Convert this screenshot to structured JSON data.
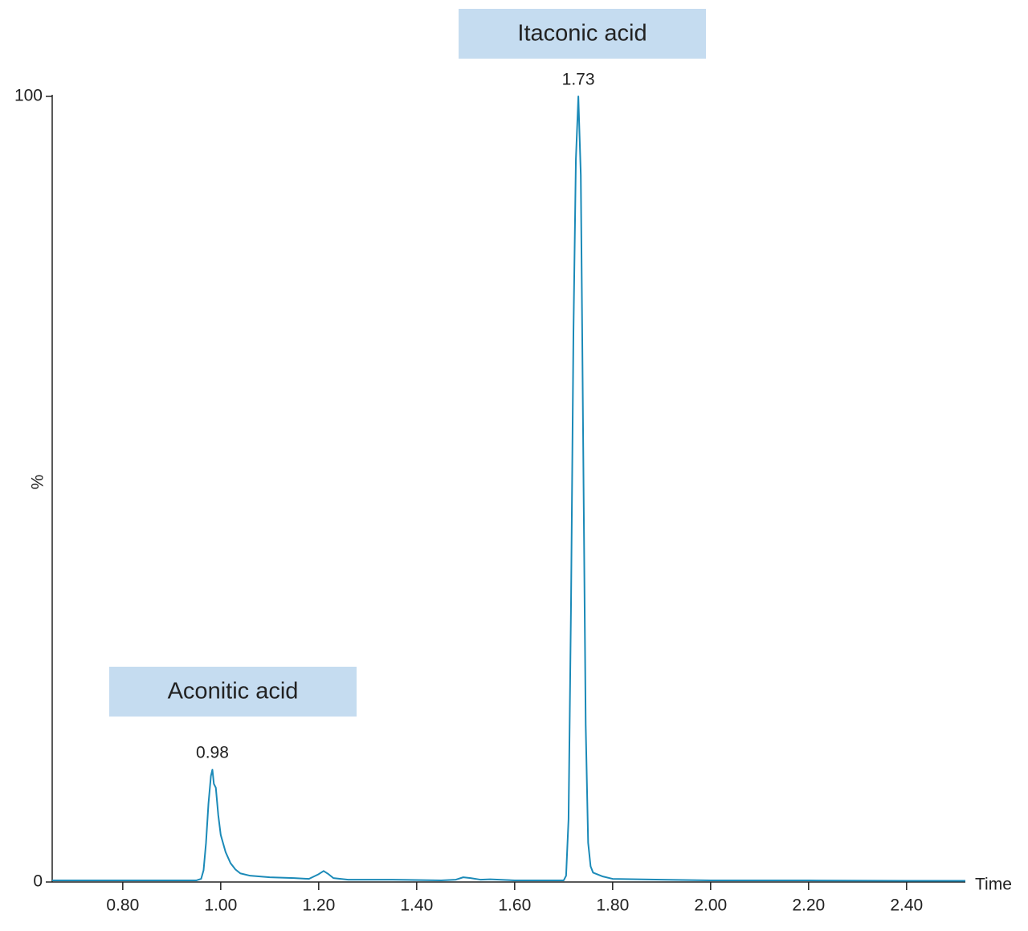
{
  "chart_data": {
    "type": "line",
    "y_label": "%",
    "x_label": "Time",
    "x": [
      0.656,
      0.7,
      0.8,
      0.9,
      0.95,
      0.96,
      0.965,
      0.97,
      0.975,
      0.98,
      0.983,
      0.986,
      0.99,
      0.995,
      1.0,
      1.01,
      1.02,
      1.03,
      1.04,
      1.06,
      1.1,
      1.15,
      1.18,
      1.2,
      1.21,
      1.22,
      1.23,
      1.26,
      1.35,
      1.45,
      1.48,
      1.495,
      1.51,
      1.53,
      1.55,
      1.6,
      1.7,
      1.705,
      1.71,
      1.715,
      1.72,
      1.725,
      1.73,
      1.735,
      1.74,
      1.745,
      1.75,
      1.755,
      1.76,
      1.78,
      1.8,
      1.9,
      2.0,
      2.2,
      2.4,
      2.52
    ],
    "series": [
      {
        "color": "#1b8ab8",
        "values": [
          0.2,
          0.2,
          0.2,
          0.2,
          0.2,
          0.4,
          1.5,
          5,
          10,
          13.5,
          14.3,
          12.5,
          12.0,
          8.5,
          6,
          3.8,
          2.4,
          1.6,
          1.1,
          0.8,
          0.6,
          0.5,
          0.4,
          1.0,
          1.4,
          1.0,
          0.5,
          0.3,
          0.3,
          0.2,
          0.3,
          0.6,
          0.5,
          0.3,
          0.35,
          0.2,
          0.2,
          0.8,
          8,
          35,
          70,
          92,
          100,
          90,
          55,
          20,
          5,
          2.0,
          1.2,
          0.7,
          0.4,
          0.3,
          0.2,
          0.2,
          0.15,
          0.15
        ]
      }
    ],
    "xlim": [
      0.656,
      2.52
    ],
    "ylim": [
      0,
      100
    ],
    "xticks": [
      {
        "value": 0.8,
        "label": "0.80"
      },
      {
        "value": 1.0,
        "label": "1.00"
      },
      {
        "value": 1.2,
        "label": "1.20"
      },
      {
        "value": 1.4,
        "label": "1.40"
      },
      {
        "value": 1.6,
        "label": "1.60"
      },
      {
        "value": 1.8,
        "label": "1.80"
      },
      {
        "value": 2.0,
        "label": "2.00"
      },
      {
        "value": 2.2,
        "label": "2.20"
      },
      {
        "value": 2.4,
        "label": "2.40"
      }
    ],
    "yticks": [
      0,
      100
    ],
    "annotations": [
      {
        "text": "1.73",
        "x": 1.73,
        "y": 100
      },
      {
        "text": "0.98",
        "x": 0.983,
        "y": 14.3
      }
    ],
    "compound_labels": [
      "Itaconic acid",
      "Aconitic acid"
    ]
  }
}
